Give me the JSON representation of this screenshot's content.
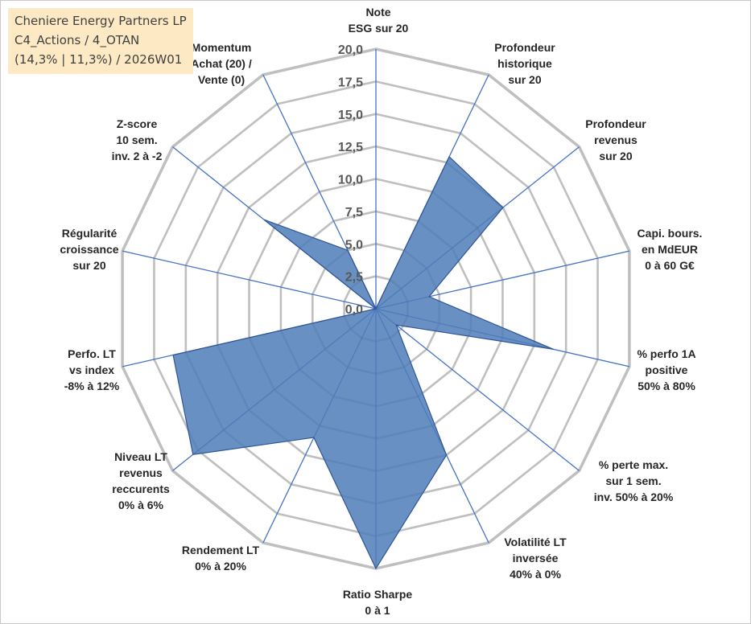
{
  "header": {
    "line1": "Cheniere Energy Partners LP",
    "line2": "C4_Actions / 4_OTAN",
    "line3": "(14,3% | 11,3%) / 2026W01"
  },
  "colors": {
    "grid": "#bfbfbf",
    "spoke": "#4472c4",
    "fill": "#4f7db8",
    "stroke": "#2f5597"
  },
  "chart_data": {
    "type": "radar",
    "title": "Cheniere Energy Partners LP",
    "rlim": [
      0,
      20
    ],
    "tick_values": [
      0,
      2.5,
      5,
      7.5,
      10,
      12.5,
      15,
      17.5,
      20
    ],
    "tick_labels": [
      "0,0",
      "2,5",
      "5,0",
      "7,5",
      "10,0",
      "12,5",
      "15,0",
      "17,5",
      "20,0"
    ],
    "categories": [
      [
        "Note",
        "ESG sur 20"
      ],
      [
        "Profondeur",
        "historique",
        "sur 20"
      ],
      [
        "Profondeur",
        "revenus",
        "sur 20"
      ],
      [
        "Capi. bours.",
        "en MdEUR",
        "0 à 60 G€"
      ],
      [
        "% perfo 1A",
        "positive",
        "50% à 80%"
      ],
      [
        "% perte max.",
        "sur 1 sem.",
        "inv. 50% à 20%"
      ],
      [
        "Volatilité LT",
        "inversée",
        "40% à 0%"
      ],
      [
        "Ratio Sharpe",
        "0 à 1"
      ],
      [
        "Rendement LT",
        "0% à 20%"
      ],
      [
        "Niveau LT",
        "revenus",
        "reccurents",
        "0% à 6%"
      ],
      [
        "Perfo. LT",
        "vs index",
        "-8% à 12%"
      ],
      [
        "Régularité",
        "croissance",
        "sur 20"
      ],
      [
        "Z-score",
        "10 sem.",
        "inv. 2 à -2"
      ],
      [
        "Momentum",
        "Achat (20) /",
        "Vente (0)"
      ]
    ],
    "series": [
      {
        "name": "Cheniere Energy Partners LP",
        "values": [
          0,
          13.0,
          12.5,
          4.2,
          14.0,
          2.0,
          12.5,
          20.0,
          11.0,
          18.0,
          16.0,
          0,
          11.0,
          5.0
        ]
      }
    ]
  }
}
